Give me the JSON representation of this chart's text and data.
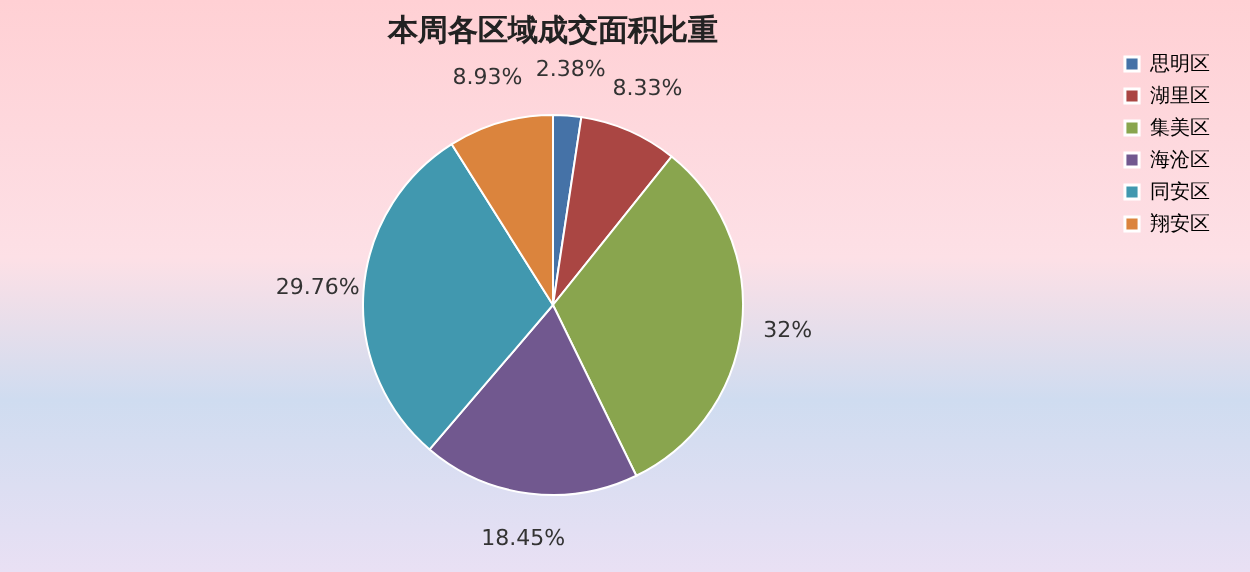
{
  "chart_data": {
    "type": "pie",
    "title": "本周各区域成交面积比重",
    "categories": [
      "思明区",
      "湖里区",
      "集美区",
      "海沧区",
      "同安区",
      "翔安区"
    ],
    "values": [
      2.38,
      8.33,
      32,
      18.45,
      29.76,
      8.93
    ],
    "value_labels": [
      "2.38%",
      "8.33%",
      "32%",
      "18.45%",
      "29.76%",
      "8.93%"
    ],
    "colors": [
      "#4572a7",
      "#aa4643",
      "#89a54e",
      "#71588f",
      "#4198af",
      "#db843d"
    ],
    "legend": "right"
  }
}
